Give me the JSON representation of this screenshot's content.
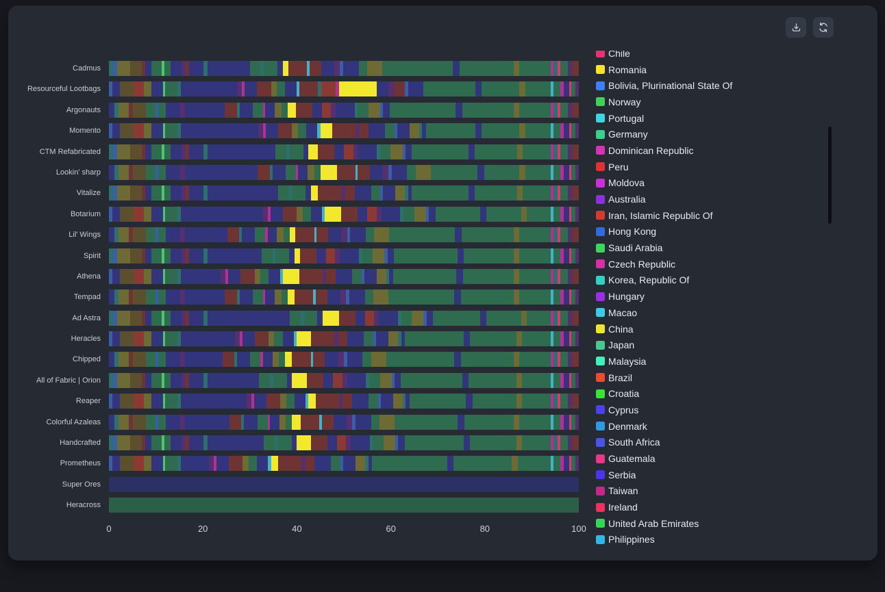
{
  "toolbar": {
    "buttons": [
      {
        "name": "download-button",
        "icon": "download-icon"
      },
      {
        "name": "refresh-button",
        "icon": "refresh-icon"
      }
    ],
    "button_bg": "#343a46",
    "icon_color": "#c9ced7"
  },
  "colors": {
    "page_bg": "#17191f",
    "card_bg": "#262a33",
    "row_label": "#c9ccd2",
    "axis_text": "#ced2d9",
    "legend_text": "#e8eaee",
    "scrollbar": "#0c0e13"
  },
  "chart_data": {
    "type": "bar",
    "orientation": "horizontal",
    "stacked": true,
    "xlabel": "",
    "ylabel": "",
    "x_range": [
      0,
      100
    ],
    "x_ticks": [
      0,
      20,
      40,
      60,
      80,
      100
    ],
    "grid": false,
    "legend_position": "right",
    "palette": {
      "n": "#32347c",
      "N": "#2b3163",
      "g": "#2f6b4e",
      "G": "#2c5f47",
      "m": "#6e3333",
      "m2": "#8a3a33",
      "o": "#6e6a33",
      "o2": "#5c4f2d",
      "p": "#55306f",
      "t": "#2d6f6d",
      "b": "#3a5ea6",
      "c": "#3fb4c9",
      "y": "#f2e92f",
      "mg": "#b03191",
      "pk": "#d9396d",
      "lg": "#4fc46a"
    },
    "patterns": {
      "left": {
        "A": [
          [
            "t",
            0.9
          ],
          [
            "b",
            0.8
          ],
          [
            "o",
            2.8
          ],
          [
            "o2",
            2.5
          ],
          [
            "m",
            0.8
          ],
          [
            "n",
            1.2
          ],
          [
            "g",
            2.2
          ],
          [
            "lg",
            0.6
          ],
          [
            "g",
            1.4
          ],
          [
            "n",
            2.2
          ],
          [
            "p",
            0.9
          ],
          [
            "m",
            0.7
          ],
          [
            "n",
            3.2
          ],
          [
            "t",
            0.8
          ],
          [
            "n+",
            9
          ],
          [
            "g",
            2.3
          ],
          [
            "t",
            0.7
          ],
          [
            "g",
            2.9
          ],
          [
            "n",
            1.1
          ]
        ],
        "B": [
          [
            "b",
            0.7
          ],
          [
            "n",
            1.6
          ],
          [
            "o2",
            3
          ],
          [
            "m2",
            2.2
          ],
          [
            "o",
            1.5
          ],
          [
            "n",
            2.5
          ],
          [
            "lg",
            0.5
          ],
          [
            "g",
            2.6
          ],
          [
            "t",
            0.7
          ],
          [
            "n+",
            8.5
          ],
          [
            "p",
            1
          ],
          [
            "mg",
            0.6
          ],
          [
            "n",
            2.6
          ],
          [
            "m",
            3
          ],
          [
            "o",
            1.2
          ],
          [
            "g",
            1.8
          ],
          [
            "n",
            2.4
          ],
          [
            "c",
            0.6
          ]
        ],
        "C": [
          [
            "n",
            1.2
          ],
          [
            "t",
            0.8
          ],
          [
            "o",
            2.2
          ],
          [
            "m",
            0.9
          ],
          [
            "o2",
            2.8
          ],
          [
            "g",
            2
          ],
          [
            "b",
            0.6
          ],
          [
            "g",
            1.6
          ],
          [
            "n",
            3
          ],
          [
            "p",
            1.1
          ],
          [
            "n+",
            7.5
          ],
          [
            "m",
            2.5
          ],
          [
            "t",
            0.6
          ],
          [
            "n",
            2.8
          ],
          [
            "g",
            2.2
          ],
          [
            "mg",
            0.5
          ],
          [
            "n",
            2
          ],
          [
            "o",
            1.4
          ],
          [
            "g",
            1.3
          ]
        ]
      },
      "mid": {
        "a": [
          [
            "m",
            4
          ],
          [
            "c",
            0.5
          ],
          [
            "m",
            2.5
          ],
          [
            "n",
            2.8
          ],
          [
            "p",
            1.2
          ],
          [
            "b",
            0.7
          ],
          [
            "n",
            3.3
          ],
          [
            "g",
            1.8
          ],
          [
            "o",
            3.2
          ]
        ],
        "b": [
          [
            "m",
            3.5
          ],
          [
            "n",
            2
          ],
          [
            "m2",
            2
          ],
          [
            "p",
            1
          ],
          [
            "n",
            4
          ],
          [
            "t",
            0.7
          ],
          [
            "g",
            2.3
          ],
          [
            "o",
            2.5
          ],
          [
            "b",
            0.6
          ],
          [
            "n",
            1.4
          ]
        ],
        "g": [
          [
            "m",
            5
          ],
          [
            "p",
            0.8
          ],
          [
            "m",
            2
          ],
          [
            "n",
            3.5
          ],
          [
            "g",
            2
          ],
          [
            "b",
            0.6
          ],
          [
            "n",
            2.6
          ],
          [
            "o",
            2
          ],
          [
            "t",
            0.7
          ],
          [
            "n",
            0.8
          ]
        ]
      },
      "tail": {
        "t1": [
          [
            "mg",
            0.7
          ],
          [
            "t",
            0.8
          ],
          [
            "pk",
            0.6
          ],
          [
            "g",
            1.6
          ],
          [
            "p",
            0.9
          ],
          [
            "m",
            1.4
          ]
        ],
        "t2": [
          [
            "c",
            0.6
          ],
          [
            "g",
            1.5
          ],
          [
            "mg",
            0.7
          ],
          [
            "n",
            1.2
          ],
          [
            "pk",
            0.5
          ],
          [
            "g",
            0.8
          ],
          [
            "p",
            0.7
          ]
        ]
      }
    },
    "rows": [
      {
        "label": "Cadmus",
        "left": "A",
        "stretch": 0,
        "yellow": 1.2,
        "mid": "a",
        "green": [
          15,
          11.6,
          6.6
        ],
        "tail": "t1"
      },
      {
        "label": "Resourceful Lootbags",
        "segments": [
          [
            "b",
            0.7
          ],
          [
            "n",
            1.6
          ],
          [
            "o2",
            3
          ],
          [
            "m2",
            2.2
          ],
          [
            "o",
            1.5
          ],
          [
            "n",
            2.5
          ],
          [
            "lg",
            0.5
          ],
          [
            "g",
            2.6
          ],
          [
            "t",
            0.7
          ],
          [
            "n",
            12
          ],
          [
            "p",
            1
          ],
          [
            "mg",
            0.6
          ],
          [
            "n",
            2.6
          ],
          [
            "m",
            3
          ],
          [
            "o",
            1.2
          ],
          [
            "g",
            1.8
          ],
          [
            "n",
            2.4
          ],
          [
            "c",
            0.6
          ],
          [
            "m",
            4
          ],
          [
            "t",
            0.7
          ],
          [
            "m2",
            3
          ],
          [
            "mg",
            0.8
          ],
          [
            "y",
            8
          ],
          [
            "n",
            2.5
          ],
          [
            "p",
            1.2
          ],
          [
            "m",
            2.3
          ],
          [
            "b",
            0.7
          ],
          [
            "n",
            3.3
          ],
          [
            "g",
            11
          ],
          [
            "n",
            1.4
          ],
          [
            "g",
            8
          ],
          [
            "o",
            1.2
          ],
          [
            "g",
            5.4
          ],
          [
            "c",
            0.6
          ],
          [
            "g",
            1.5
          ],
          [
            "mg",
            0.7
          ],
          [
            "n",
            1.2
          ],
          [
            "pk",
            0.5
          ],
          [
            "g",
            0.8
          ],
          [
            "p",
            0.7
          ]
        ]
      },
      {
        "label": "Argonauts",
        "left": "C",
        "stretch": 1,
        "yellow": 1.8,
        "mid": "b",
        "green": [
          14,
          11,
          6.6
        ],
        "tail": "t1"
      },
      {
        "label": "Momento",
        "left": "B",
        "stretch": 8,
        "yellow": 2.5,
        "mid": "g",
        "green": [
          10.5,
          8,
          5.4
        ],
        "tail": "t2"
      },
      {
        "label": "CTM Refabricated",
        "left": "A",
        "stretch": 5.5,
        "yellow": 2,
        "mid": "b",
        "green": [
          12,
          9,
          5.9
        ],
        "tail": "t1"
      },
      {
        "label": "Lookin' sharp",
        "left": "C",
        "stretch": 8,
        "yellow": 3.5,
        "mid": "a",
        "green": [
          10,
          7.5,
          5.4
        ],
        "tail": "t2"
      },
      {
        "label": "Vitalize",
        "left": "A",
        "stretch": 6,
        "yellow": 1.5,
        "mid": "g",
        "green": [
          12,
          9,
          5.9
        ],
        "tail": "t1"
      },
      {
        "label": "Botarium",
        "left": "B",
        "stretch": 9,
        "yellow": 3.5,
        "mid": "b",
        "green": [
          9.5,
          7.4,
          5
        ],
        "tail": "t2"
      },
      {
        "label": "Lil' Wings",
        "left": "C",
        "stretch": 1.5,
        "yellow": 1.2,
        "mid": "a",
        "green": [
          14,
          11.1,
          6.6
        ],
        "tail": "t1"
      },
      {
        "label": "Spirit",
        "left": "A",
        "stretch": 2.5,
        "yellow": 1.2,
        "mid": "b",
        "green": [
          13.5,
          10.6,
          6.6
        ],
        "tail": "t2"
      },
      {
        "label": "Athena",
        "left": "B",
        "stretch": 0,
        "yellow": 3.5,
        "mid": "g",
        "green": [
          13.5,
          10.8,
          6.6
        ],
        "tail": "t1"
      },
      {
        "label": "Tempad",
        "left": "C",
        "stretch": 1,
        "yellow": 1.5,
        "mid": "a",
        "green": [
          14,
          11.3,
          6.6
        ],
        "tail": "t2"
      },
      {
        "label": "Ad Astra",
        "left": "A",
        "stretch": 8.5,
        "yellow": 3.5,
        "mid": "b",
        "green": [
          10,
          7.4,
          5
        ],
        "tail": "t1"
      },
      {
        "label": "Heracles",
        "left": "B",
        "stretch": 3,
        "yellow": 3,
        "mid": "g",
        "green": [
          12.5,
          9.9,
          6
        ],
        "tail": "t2"
      },
      {
        "label": "Chipped",
        "left": "C",
        "stretch": 0.5,
        "yellow": 1.5,
        "mid": "a",
        "green": [
          14.5,
          11.3,
          6.6
        ],
        "tail": "t1"
      },
      {
        "label": "All of Fabric | Orion",
        "left": "A",
        "stretch": 2,
        "yellow": 3.2,
        "mid": "b",
        "green": [
          13,
          10.2,
          6
        ],
        "tail": "t2"
      },
      {
        "label": "Reaper",
        "left": "B",
        "stretch": 5.5,
        "yellow": 1.5,
        "mid": "g",
        "green": [
          12,
          9.4,
          6
        ],
        "tail": "t1"
      },
      {
        "label": "Colorful Azaleas",
        "left": "C",
        "stretch": 2,
        "yellow": 1.8,
        "mid": "a",
        "green": [
          13.5,
          10.5,
          6.6
        ],
        "tail": "t2"
      },
      {
        "label": "Handcrafted",
        "left": "A",
        "stretch": 3,
        "yellow": 3,
        "mid": "b",
        "green": [
          12.5,
          9.9,
          6
        ],
        "tail": "t1"
      },
      {
        "label": "Prometheus",
        "left": "B",
        "stretch": -2.5,
        "yellow": 1.5,
        "mid": "g",
        "green": [
          16,
          12.4,
          7
        ],
        "tail": "t2"
      },
      {
        "label": "Super Ores",
        "solid": "N"
      },
      {
        "label": "Heracross",
        "solid": "G"
      }
    ],
    "legend": [
      {
        "label": "Chile",
        "color": "#e83270"
      },
      {
        "label": "Romania",
        "color": "#f5e625"
      },
      {
        "label": "Bolivia, Plurinational State Of",
        "color": "#3b82f6"
      },
      {
        "label": "Norway",
        "color": "#3fd158"
      },
      {
        "label": "Portugal",
        "color": "#3dd6e0"
      },
      {
        "label": "Germany",
        "color": "#3ecf8a"
      },
      {
        "label": "Dominican Republic",
        "color": "#d433b8"
      },
      {
        "label": "Peru",
        "color": "#e03232"
      },
      {
        "label": "Moldova",
        "color": "#cc2fd6"
      },
      {
        "label": "Australia",
        "color": "#8b2fe0"
      },
      {
        "label": "Iran, Islamic Republic Of",
        "color": "#d63a2e"
      },
      {
        "label": "Hong Kong",
        "color": "#2f6ae0"
      },
      {
        "label": "Saudi Arabia",
        "color": "#3bd65c"
      },
      {
        "label": "Czech Republic",
        "color": "#d62fa8"
      },
      {
        "label": "Korea, Republic Of",
        "color": "#35cfc4"
      },
      {
        "label": "Hungary",
        "color": "#9a2fe6"
      },
      {
        "label": "Macao",
        "color": "#3ec9e6"
      },
      {
        "label": "China",
        "color": "#f0e62e"
      },
      {
        "label": "Japan",
        "color": "#45c98e"
      },
      {
        "label": "Malaysia",
        "color": "#3ef2b8"
      },
      {
        "label": "Brazil",
        "color": "#f04a2a"
      },
      {
        "label": "Croatia",
        "color": "#35e635"
      },
      {
        "label": "Cyprus",
        "color": "#4a42f0"
      },
      {
        "label": "Denmark",
        "color": "#2f9ae0"
      },
      {
        "label": "South Africa",
        "color": "#4a56e0"
      },
      {
        "label": "Guatemala",
        "color": "#e8388a"
      },
      {
        "label": "Serbia",
        "color": "#4a35e8"
      },
      {
        "label": "Taiwan",
        "color": "#c22987"
      },
      {
        "label": "Ireland",
        "color": "#f03060"
      },
      {
        "label": "United Arab Emirates",
        "color": "#35d656"
      },
      {
        "label": "Philippines",
        "color": "#2fb8e8"
      }
    ]
  }
}
